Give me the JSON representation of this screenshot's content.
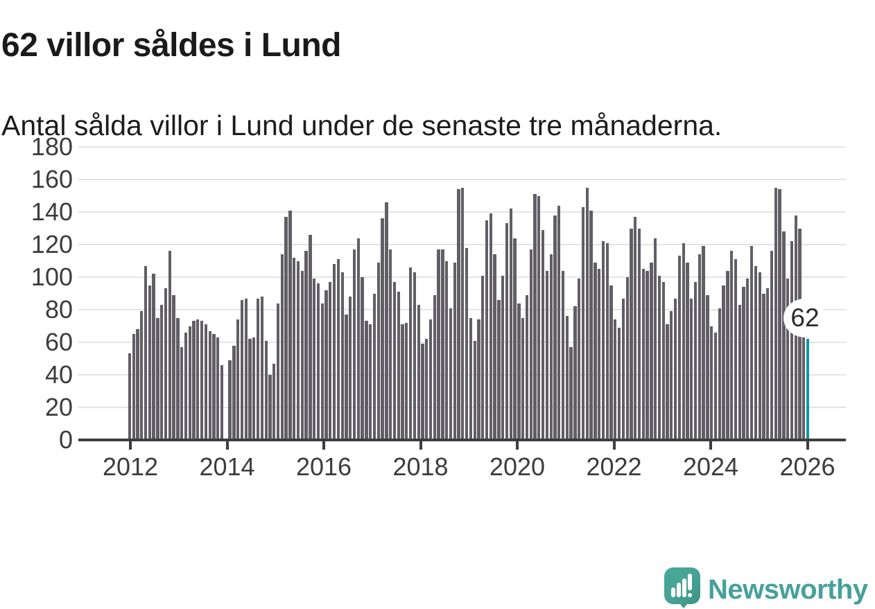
{
  "header": {
    "title": "62 villor såldes i Lund",
    "subtitle": "Antal sålda villor i Lund under de senaste tre månaderna."
  },
  "chart_data": {
    "type": "bar",
    "title": "62 villor såldes i Lund",
    "subtitle": "Antal sålda villor i Lund under de senaste tre månaderna.",
    "xlabel": "",
    "ylabel": "",
    "ylim": [
      0,
      180
    ],
    "y_ticks": [
      0,
      20,
      40,
      60,
      80,
      100,
      120,
      140,
      160,
      180
    ],
    "x_tick_labels": [
      "2012",
      "2014",
      "2016",
      "2018",
      "2020",
      "2022",
      "2024",
      "2026"
    ],
    "x_start": "2012-01",
    "frequency": "monthly",
    "grid": "horizontal",
    "legend": "none",
    "values": [
      53,
      65,
      68,
      79,
      107,
      95,
      102,
      75,
      83,
      93,
      116,
      89,
      75,
      57,
      66,
      70,
      73,
      74,
      73,
      71,
      67,
      65,
      63,
      46,
      null,
      49,
      58,
      74,
      86,
      87,
      62,
      63,
      87,
      88,
      61,
      40,
      47,
      84,
      114,
      137,
      141,
      112,
      110,
      104,
      116,
      126,
      99,
      96,
      84,
      92,
      97,
      108,
      111,
      103,
      77,
      88,
      117,
      124,
      100,
      73,
      71,
      90,
      109,
      136,
      146,
      117,
      97,
      91,
      71,
      72,
      106,
      103,
      83,
      59,
      62,
      74,
      89,
      117,
      117,
      110,
      81,
      109,
      154,
      155,
      118,
      75,
      61,
      74,
      101,
      135,
      139,
      114,
      86,
      101,
      133,
      142,
      124,
      84,
      75,
      89,
      117,
      151,
      150,
      129,
      104,
      114,
      138,
      144,
      104,
      76,
      57,
      82,
      99,
      143,
      155,
      141,
      109,
      105,
      122,
      121,
      95,
      74,
      69,
      87,
      100,
      130,
      137,
      130,
      105,
      104,
      109,
      124,
      101,
      97,
      71,
      79,
      87,
      113,
      121,
      109,
      87,
      97,
      114,
      119,
      89,
      70,
      66,
      81,
      95,
      104,
      116,
      111,
      83,
      94,
      99,
      119,
      107,
      103,
      90,
      93,
      116,
      155,
      154,
      128,
      99,
      122,
      138,
      130,
      85,
      62
    ],
    "highlight_index": 169,
    "highlight_value": 62,
    "highlight_label": "62",
    "bar_color": "#615e65",
    "highlight_color": "#0b99a2",
    "gridline_color": "#e4e4e4",
    "axis_color": "#3d3d3d"
  },
  "footer": {
    "brand": "Newsworthy",
    "logo_color": "#45a294"
  }
}
